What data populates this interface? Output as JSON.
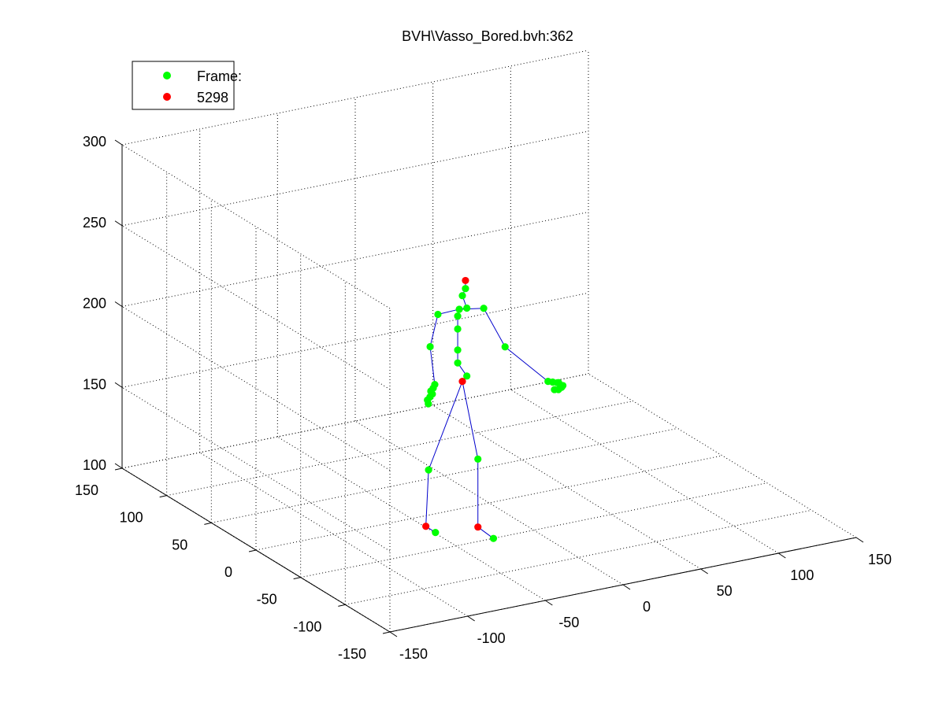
{
  "chart_data": {
    "type": "scatter",
    "title": "BVH\\Vasso_Bored.bvh:362",
    "legend": {
      "placement": "top-left",
      "entries": [
        {
          "label": "Frame:",
          "color": "#00ff00"
        },
        {
          "label": "5298",
          "color": "#ff0000"
        }
      ]
    },
    "grid": true,
    "axes": {
      "x": {
        "ticks": [
          -150,
          -100,
          -50,
          0,
          50,
          100,
          150
        ],
        "range": [
          -150,
          150
        ]
      },
      "y": {
        "ticks": [
          -150,
          -100,
          -50,
          0,
          50,
          100,
          150
        ],
        "range": [
          -150,
          150
        ]
      },
      "z": {
        "ticks": [
          100,
          150,
          200,
          250,
          300
        ],
        "range": [
          100,
          300
        ]
      }
    },
    "colors": {
      "joint": "#00ff00",
      "root": "#ff0000",
      "bone": "#0000cc"
    },
    "points": [
      {
        "x": 0,
        "y": 30,
        "z": 165,
        "red": true
      },
      {
        "x": 0,
        "y": 25,
        "z": 170
      },
      {
        "x": -3,
        "y": 30,
        "z": 177
      },
      {
        "x": -3,
        "y": 30,
        "z": 185
      },
      {
        "x": -3,
        "y": 30,
        "z": 198
      },
      {
        "x": -3,
        "y": 30,
        "z": 206
      },
      {
        "x": -2,
        "y": 30,
        "z": 210
      },
      {
        "x": 0,
        "y": 25,
        "z": 212
      },
      {
        "x": 0,
        "y": 30,
        "z": 218
      },
      {
        "x": 2,
        "y": 30,
        "z": 222
      },
      {
        "x": 2,
        "y": 30,
        "z": 227,
        "red": true
      },
      {
        "x": 8,
        "y": 20,
        "z": 212
      },
      {
        "x": 16,
        "y": 10,
        "z": 190
      },
      {
        "x": 35,
        "y": -5,
        "z": 170
      },
      {
        "x": 38,
        "y": -5,
        "z": 169
      },
      {
        "x": 41,
        "y": -5,
        "z": 168
      },
      {
        "x": 43,
        "y": -3,
        "z": 167
      },
      {
        "x": 42,
        "y": -8,
        "z": 166
      },
      {
        "x": 40,
        "y": -8,
        "z": 165
      },
      {
        "x": 38,
        "y": -7,
        "z": 165
      },
      {
        "x": 44,
        "y": -6,
        "z": 166
      },
      {
        "x": -10,
        "y": 40,
        "z": 205
      },
      {
        "x": -15,
        "y": 40,
        "z": 186
      },
      {
        "x": -12,
        "y": 40,
        "z": 162
      },
      {
        "x": -13,
        "y": 40,
        "z": 160
      },
      {
        "x": -14,
        "y": 41,
        "z": 158
      },
      {
        "x": -13,
        "y": 41,
        "z": 156
      },
      {
        "x": -14,
        "y": 42,
        "z": 154
      },
      {
        "x": -15,
        "y": 43,
        "z": 152
      },
      {
        "x": -15,
        "y": 42,
        "z": 150
      },
      {
        "x": 10,
        "y": 30,
        "z": 115
      },
      {
        "x": 10,
        "y": 30,
        "z": 73,
        "red": true
      },
      {
        "x": 20,
        "y": 30,
        "z": 64
      },
      {
        "x": -16,
        "y": 40,
        "z": 110
      },
      {
        "x": -12,
        "y": 50,
        "z": 71,
        "red": true
      },
      {
        "x": -11,
        "y": 41,
        "z": 70
      }
    ],
    "bones": [
      [
        0,
        1
      ],
      [
        1,
        2
      ],
      [
        2,
        3
      ],
      [
        3,
        4
      ],
      [
        4,
        5
      ],
      [
        5,
        6
      ],
      [
        6,
        7
      ],
      [
        7,
        8
      ],
      [
        8,
        9
      ],
      [
        9,
        10
      ],
      [
        6,
        11
      ],
      [
        11,
        12
      ],
      [
        12,
        13
      ],
      [
        6,
        21
      ],
      [
        21,
        22
      ],
      [
        22,
        23
      ],
      [
        0,
        30
      ],
      [
        30,
        31
      ],
      [
        31,
        32
      ],
      [
        0,
        33
      ],
      [
        33,
        34
      ],
      [
        34,
        35
      ]
    ]
  }
}
